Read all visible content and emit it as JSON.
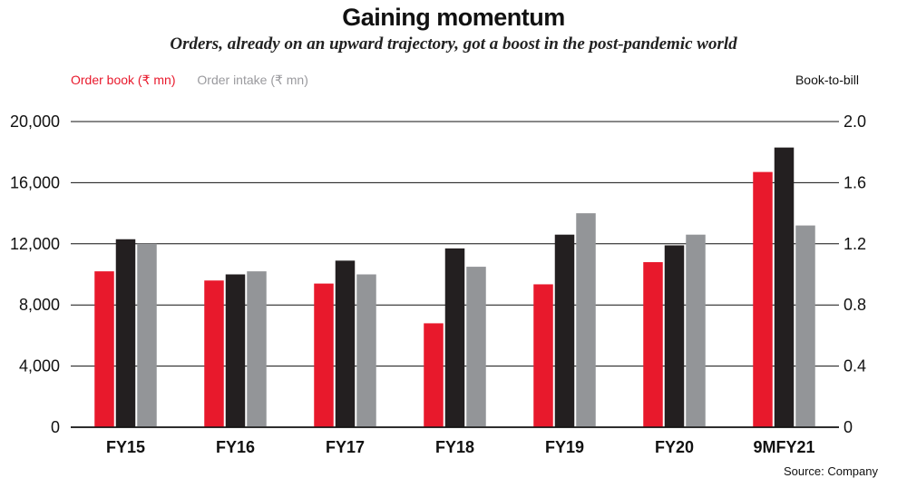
{
  "chart_data": {
    "type": "bar",
    "title": "Gaining momentum",
    "subtitle": "Orders, already on an upward trajectory, got a boost in the post-pandemic world",
    "categories": [
      "FY15",
      "FY16",
      "FY17",
      "FY18",
      "FY19",
      "FY20",
      "9MFY21"
    ],
    "series": [
      {
        "name": "Order book (₹ mn)",
        "axis": "left",
        "color": "#e8192c",
        "values": [
          10200,
          9600,
          9400,
          6800,
          9350,
          10800,
          16700
        ]
      },
      {
        "name": "Book-to-bill",
        "axis": "right",
        "color": "#231f20",
        "values": [
          1.23,
          1.0,
          1.09,
          1.17,
          1.26,
          1.19,
          1.83
        ]
      },
      {
        "name": "Order intake (₹ mn)",
        "axis": "left",
        "color": "#939598",
        "values": [
          12000,
          10200,
          10000,
          10500,
          14000,
          12600,
          13200
        ]
      }
    ],
    "legend_placement": "top-left",
    "left_axis": {
      "ylim": [
        0,
        20000
      ],
      "ticks": [
        "0",
        "4,000",
        "8,000",
        "12,000",
        "16,000",
        "20,000"
      ]
    },
    "right_axis": {
      "ylim": [
        0,
        2.0
      ],
      "label": "Book-to-bill",
      "ticks": [
        "0",
        "0.4",
        "0.8",
        "1.2",
        "1.6",
        "2.0"
      ]
    },
    "grid": true,
    "source": "Source: Company"
  }
}
